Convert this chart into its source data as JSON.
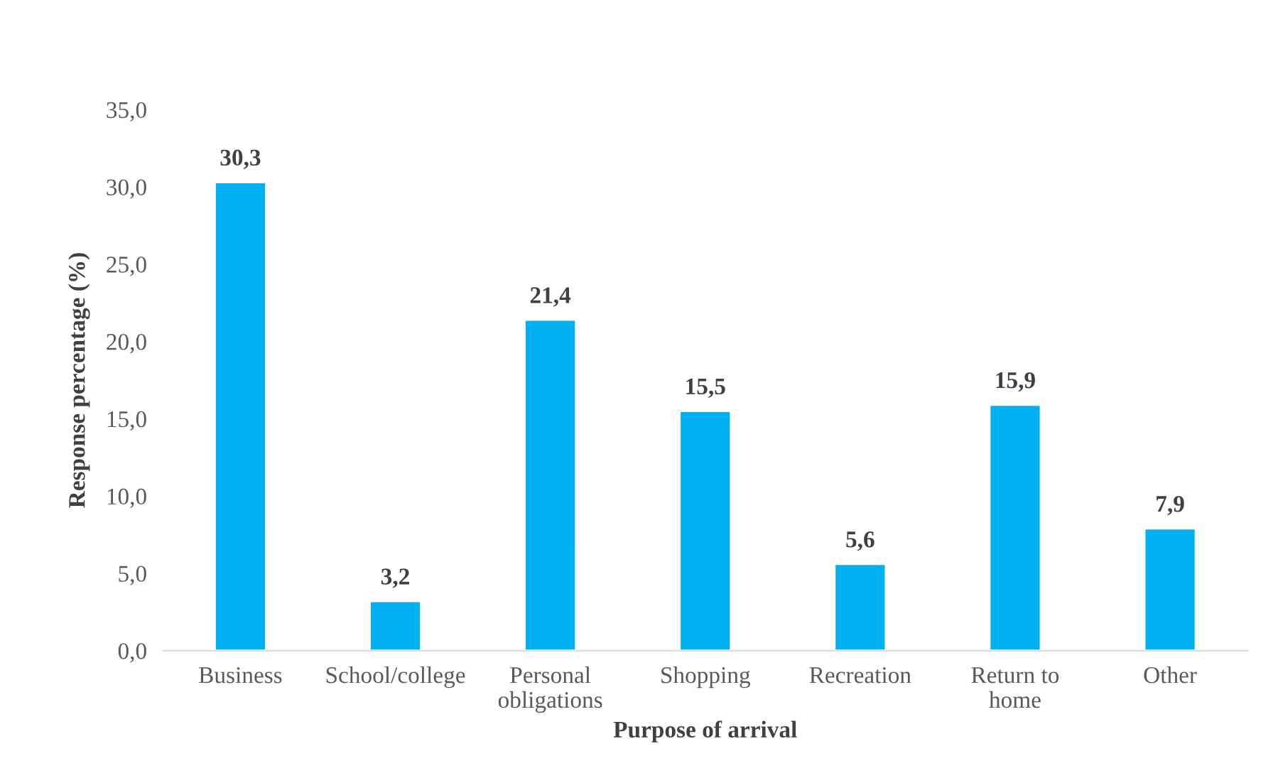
{
  "chart_data": {
    "type": "bar",
    "xlabel": "Purpose of arrival",
    "ylabel": "Response percentage (%)",
    "categories": [
      "Business",
      "School/college",
      "Personal\nobligations",
      "Shopping",
      "Recreation",
      "Return to\nhome",
      "Other"
    ],
    "values": [
      30.3,
      3.2,
      21.4,
      15.5,
      5.6,
      15.9,
      7.9
    ],
    "value_labels": [
      "30,3",
      "3,2",
      "21,4",
      "15,5",
      "5,6",
      "15,9",
      "7,9"
    ],
    "color": "#00b0f0",
    "ylim": [
      0,
      35
    ],
    "yticks": [
      {
        "value": 0,
        "label": "0,0"
      },
      {
        "value": 5,
        "label": "5,0"
      },
      {
        "value": 10,
        "label": "10,0"
      },
      {
        "value": 15,
        "label": "15,0"
      },
      {
        "value": 20,
        "label": "20,0"
      },
      {
        "value": 25,
        "label": "25,0"
      },
      {
        "value": 30,
        "label": "30,0"
      },
      {
        "value": 35,
        "label": "35,0"
      }
    ],
    "grid": false,
    "legend": false
  }
}
